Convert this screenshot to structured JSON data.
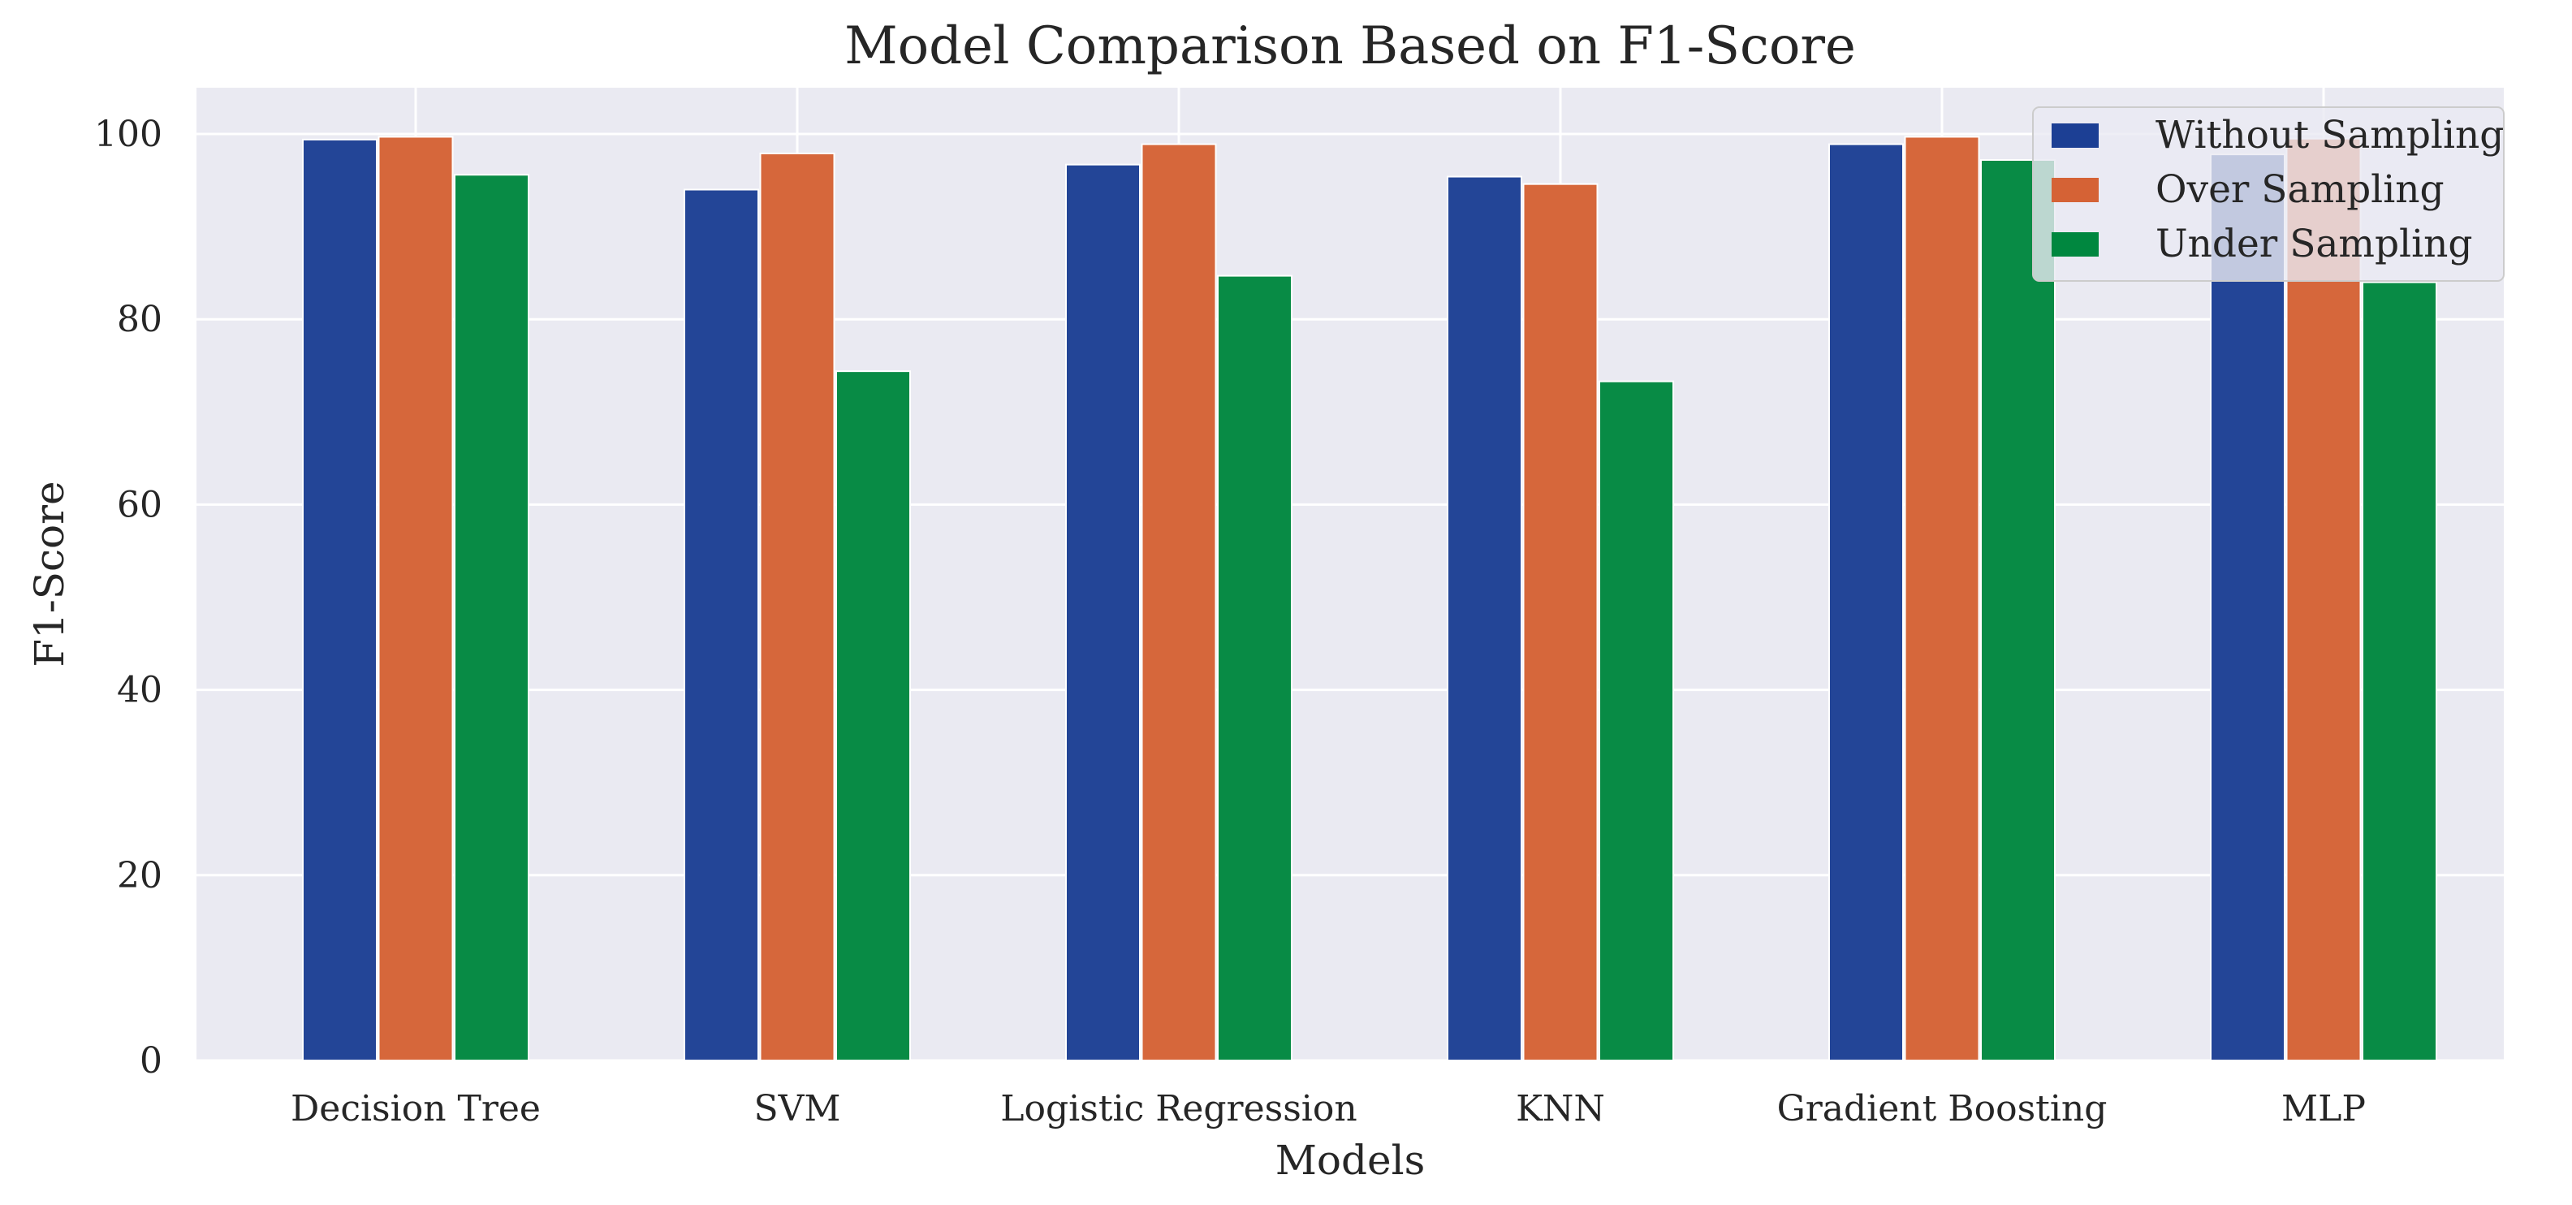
{
  "chart_data": {
    "type": "bar",
    "title": "Model Comparison Based on F1-Score",
    "xlabel": "Models",
    "ylabel": "F1-Score",
    "ylim": [
      0,
      105
    ],
    "yticks": [
      0,
      20,
      40,
      60,
      80,
      100
    ],
    "grid": true,
    "legend_position": "top-right",
    "categories": [
      "Decision Tree",
      "SVM",
      "Logistic Regression",
      "KNN",
      "Gradient Boosting",
      "MLP"
    ],
    "series": [
      {
        "name": "Without Sampling",
        "color": "#1c3f94",
        "values": [
          99.4,
          94.0,
          96.7,
          95.4,
          98.9,
          97.8
        ]
      },
      {
        "name": "Over Sampling",
        "color": "#d56235",
        "values": [
          99.7,
          97.9,
          98.9,
          94.6,
          99.7,
          99.5
        ]
      },
      {
        "name": "Under Sampling",
        "color": "#00873f",
        "values": [
          95.6,
          74.4,
          84.7,
          73.3,
          97.2,
          84.0
        ]
      }
    ]
  }
}
